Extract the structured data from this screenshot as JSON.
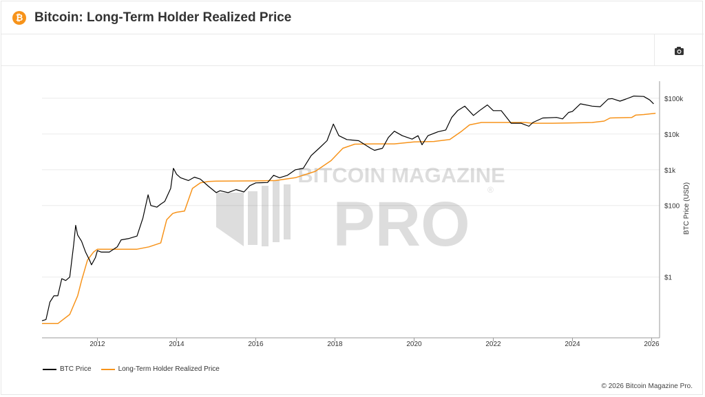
{
  "header": {
    "title": "Bitcoin: Long-Term Holder Realized Price",
    "badge_symbol": "₿"
  },
  "toolbar": {
    "screenshot_icon": "camera-icon"
  },
  "watermark": {
    "line1": "BITCOIN MAGAZINE",
    "line2": "PRO",
    "registered": "®"
  },
  "footer": {
    "copyright": "© 2026 Bitcoin Magazine Pro."
  },
  "colors": {
    "btc_price": "#000000",
    "lth_realized_price": "#f7931a",
    "brand": "#f7931a"
  },
  "chart_data": {
    "type": "line",
    "title": "Bitcoin: Long-Term Holder Realized Price",
    "xlabel": "",
    "ylabel": "BTC Price (USD)",
    "yscale": "log",
    "xlim": [
      2010.6,
      2026.2
    ],
    "ylim": [
      0.02,
      300000
    ],
    "x_ticks": [
      "2012",
      "2014",
      "2016",
      "2018",
      "2020",
      "2022",
      "2024",
      "2026"
    ],
    "y_ticks": [
      {
        "value": 1,
        "label": "$1"
      },
      {
        "value": 100,
        "label": "$100"
      },
      {
        "value": 1000,
        "label": "$1k"
      },
      {
        "value": 10000,
        "label": "$10k"
      },
      {
        "value": 100000,
        "label": "$100k"
      }
    ],
    "legend": [
      "BTC Price",
      "Long-Term Holder Realized Price"
    ],
    "series": [
      {
        "name": "BTC Price",
        "color": "#000000",
        "points": [
          [
            2010.6,
            0.06
          ],
          [
            2010.7,
            0.065
          ],
          [
            2010.8,
            0.2
          ],
          [
            2010.9,
            0.3
          ],
          [
            2011.0,
            0.3
          ],
          [
            2011.1,
            0.9
          ],
          [
            2011.2,
            0.8
          ],
          [
            2011.3,
            1.0
          ],
          [
            2011.4,
            8.0
          ],
          [
            2011.45,
            28.0
          ],
          [
            2011.5,
            15.0
          ],
          [
            2011.6,
            10.0
          ],
          [
            2011.7,
            5.0
          ],
          [
            2011.8,
            3.0
          ],
          [
            2011.85,
            2.2
          ],
          [
            2011.95,
            3.5
          ],
          [
            2012.0,
            5.5
          ],
          [
            2012.1,
            5.0
          ],
          [
            2012.3,
            5.0
          ],
          [
            2012.5,
            7.0
          ],
          [
            2012.6,
            11.0
          ],
          [
            2012.8,
            12.0
          ],
          [
            2013.0,
            14.0
          ],
          [
            2013.15,
            45.0
          ],
          [
            2013.28,
            200.0
          ],
          [
            2013.35,
            100.0
          ],
          [
            2013.5,
            90.0
          ],
          [
            2013.6,
            110.0
          ],
          [
            2013.7,
            130.0
          ],
          [
            2013.85,
            300.0
          ],
          [
            2013.92,
            1100.0
          ],
          [
            2014.0,
            750.0
          ],
          [
            2014.1,
            600.0
          ],
          [
            2014.3,
            500.0
          ],
          [
            2014.45,
            620.0
          ],
          [
            2014.6,
            550.0
          ],
          [
            2014.8,
            350.0
          ],
          [
            2015.0,
            230.0
          ],
          [
            2015.1,
            260.0
          ],
          [
            2015.3,
            230.0
          ],
          [
            2015.5,
            280.0
          ],
          [
            2015.7,
            240.0
          ],
          [
            2015.85,
            360.0
          ],
          [
            2016.0,
            430.0
          ],
          [
            2016.3,
            440.0
          ],
          [
            2016.45,
            700.0
          ],
          [
            2016.6,
            600.0
          ],
          [
            2016.8,
            700.0
          ],
          [
            2017.0,
            1000.0
          ],
          [
            2017.2,
            1100.0
          ],
          [
            2017.4,
            2500.0
          ],
          [
            2017.6,
            4000.0
          ],
          [
            2017.8,
            6500.0
          ],
          [
            2017.96,
            19000.0
          ],
          [
            2018.1,
            9000.0
          ],
          [
            2018.3,
            7000.0
          ],
          [
            2018.6,
            6500.0
          ],
          [
            2018.9,
            4000.0
          ],
          [
            2019.0,
            3500.0
          ],
          [
            2019.2,
            4000.0
          ],
          [
            2019.35,
            8000.0
          ],
          [
            2019.5,
            12000.0
          ],
          [
            2019.7,
            9000.0
          ],
          [
            2019.95,
            7200.0
          ],
          [
            2020.1,
            9000.0
          ],
          [
            2020.2,
            5000.0
          ],
          [
            2020.35,
            9000.0
          ],
          [
            2020.6,
            11500.0
          ],
          [
            2020.8,
            13000.0
          ],
          [
            2020.95,
            29000.0
          ],
          [
            2021.1,
            45000.0
          ],
          [
            2021.28,
            60000.0
          ],
          [
            2021.5,
            33000.0
          ],
          [
            2021.65,
            45000.0
          ],
          [
            2021.85,
            65000.0
          ],
          [
            2022.0,
            45000.0
          ],
          [
            2022.2,
            45000.0
          ],
          [
            2022.45,
            20000.0
          ],
          [
            2022.7,
            20000.0
          ],
          [
            2022.9,
            16500.0
          ],
          [
            2023.0,
            21000.0
          ],
          [
            2023.25,
            28000.0
          ],
          [
            2023.6,
            29000.0
          ],
          [
            2023.75,
            26500.0
          ],
          [
            2023.9,
            40000.0
          ],
          [
            2024.0,
            43000.0
          ],
          [
            2024.2,
            70000.0
          ],
          [
            2024.5,
            60000.0
          ],
          [
            2024.7,
            58000.0
          ],
          [
            2024.9,
            95000.0
          ],
          [
            2025.0,
            98000.0
          ],
          [
            2025.2,
            83000.0
          ],
          [
            2025.35,
            95000.0
          ],
          [
            2025.55,
            115000.0
          ],
          [
            2025.8,
            112000.0
          ],
          [
            2025.95,
            90000.0
          ],
          [
            2026.05,
            70000.0
          ]
        ]
      },
      {
        "name": "Long-Term Holder Realized Price",
        "color": "#f7931a",
        "points": [
          [
            2010.6,
            0.05
          ],
          [
            2011.0,
            0.05
          ],
          [
            2011.3,
            0.09
          ],
          [
            2011.5,
            0.3
          ],
          [
            2011.6,
            0.8
          ],
          [
            2011.75,
            3.0
          ],
          [
            2011.9,
            5.0
          ],
          [
            2012.0,
            6.0
          ],
          [
            2012.5,
            6.0
          ],
          [
            2013.0,
            6.0
          ],
          [
            2013.3,
            7.0
          ],
          [
            2013.6,
            9.0
          ],
          [
            2013.75,
            40.0
          ],
          [
            2013.9,
            60.0
          ],
          [
            2014.0,
            65.0
          ],
          [
            2014.2,
            70.0
          ],
          [
            2014.4,
            300.0
          ],
          [
            2014.6,
            430.0
          ],
          [
            2014.8,
            470.0
          ],
          [
            2015.0,
            480.0
          ],
          [
            2016.0,
            490.0
          ],
          [
            2016.5,
            500.0
          ],
          [
            2017.0,
            600.0
          ],
          [
            2017.5,
            900.0
          ],
          [
            2017.9,
            1800.0
          ],
          [
            2018.2,
            4000.0
          ],
          [
            2018.5,
            5200.0
          ],
          [
            2019.0,
            5300.0
          ],
          [
            2019.5,
            5300.0
          ],
          [
            2020.0,
            6000.0
          ],
          [
            2020.5,
            6200.0
          ],
          [
            2020.9,
            7000.0
          ],
          [
            2021.2,
            12000.0
          ],
          [
            2021.4,
            18000.0
          ],
          [
            2021.7,
            21000.0
          ],
          [
            2022.0,
            21000.0
          ],
          [
            2022.3,
            21000.0
          ],
          [
            2022.5,
            21000.0
          ],
          [
            2022.8,
            21000.0
          ],
          [
            2023.0,
            20000.0
          ],
          [
            2023.5,
            20000.0
          ],
          [
            2024.0,
            20500.0
          ],
          [
            2024.5,
            21000.0
          ],
          [
            2024.8,
            23000.0
          ],
          [
            2024.95,
            28000.0
          ],
          [
            2025.2,
            28500.0
          ],
          [
            2025.5,
            29000.0
          ],
          [
            2025.6,
            34000.0
          ],
          [
            2025.8,
            35000.0
          ],
          [
            2026.1,
            38000.0
          ]
        ]
      }
    ]
  }
}
